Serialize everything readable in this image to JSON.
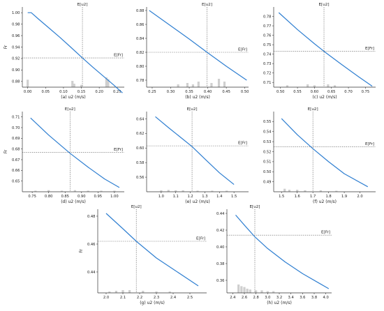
{
  "chart_data": [
    {
      "type": "line",
      "caption": "(a) u2 (m/s)",
      "ylabel": "Fr",
      "xlim": [
        -0.015,
        0.27
      ],
      "ylim": [
        0.87,
        1.01
      ],
      "xticks": [
        "0.00",
        "0.05",
        "0.10",
        "0.15",
        "0.20",
        "0.25"
      ],
      "yticks": [
        "0.88",
        "0.90",
        "0.92",
        "0.94",
        "0.96",
        "0.98",
        "1.00"
      ],
      "vline": {
        "x": 0.153,
        "label": "E[u2]"
      },
      "hline": {
        "y": 0.921,
        "label": "E[Fr]"
      },
      "series": [
        {
          "x": [
            0,
            0.01,
            0.03,
            0.06,
            0.09,
            0.12,
            0.153,
            0.18,
            0.21,
            0.24,
            0.265
          ],
          "y": [
            1.0,
            1.0,
            0.989,
            0.973,
            0.957,
            0.94,
            0.921,
            0.906,
            0.89,
            0.874,
            0.86
          ]
        }
      ],
      "histogram": {
        "x": [
          0.0,
          0.125,
          0.13,
          0.15,
          0.22,
          0.225
        ],
        "h": [
          0.013,
          0.011,
          0.006,
          0.004,
          0.017,
          0.014
        ]
      }
    },
    {
      "type": "line",
      "caption": "(b) u2 (m/s)",
      "ylabel": "",
      "xlim": [
        0.235,
        0.51
      ],
      "ylim": [
        0.77,
        0.885
      ],
      "xticks": [
        "0.25",
        "0.30",
        "0.35",
        "0.40",
        "0.45",
        "0.50"
      ],
      "yticks": [
        "0.78",
        "0.80",
        "0.82",
        "0.84",
        "0.86",
        "0.88"
      ],
      "vline": {
        "x": 0.398,
        "label": "E[u2]"
      },
      "hline": {
        "y": 0.82,
        "label": "E[Fr]"
      },
      "series": [
        {
          "x": [
            0.242,
            0.3,
            0.35,
            0.398,
            0.45,
            0.505
          ],
          "y": [
            0.88,
            0.858,
            0.839,
            0.82,
            0.8,
            0.78
          ]
        }
      ],
      "histogram": {
        "x": [
          0.32,
          0.345,
          0.36,
          0.375,
          0.41,
          0.43,
          0.445
        ],
        "h": [
          0.004,
          0.006,
          0.004,
          0.008,
          0.006,
          0.012,
          0.008
        ]
      }
    },
    {
      "type": "line",
      "caption": "(c) u2 (m/s)",
      "ylabel": "",
      "xlim": [
        0.48,
        0.78
      ],
      "ylim": [
        0.705,
        0.79
      ],
      "xticks": [
        "0.50",
        "0.55",
        "0.60",
        "0.65",
        "0.70",
        "0.75"
      ],
      "yticks": [
        "0.71",
        "0.72",
        "0.73",
        "0.74",
        "0.75",
        "0.76",
        "0.77",
        "0.78"
      ],
      "vline": {
        "x": 0.628,
        "label": "E[u2]"
      },
      "hline": {
        "y": 0.743,
        "label": "E[Fr]"
      },
      "series": [
        {
          "x": [
            0.495,
            0.55,
            0.6,
            0.628,
            0.68,
            0.73,
            0.77
          ],
          "y": [
            0.784,
            0.766,
            0.751,
            0.743,
            0.729,
            0.716,
            0.706
          ]
        }
      ],
      "histogram": {
        "x": [
          0.52,
          0.58,
          0.6,
          0.64,
          0.66
        ],
        "h": [
          0.002,
          0.003,
          0.002,
          0.003,
          0.002
        ]
      }
    },
    {
      "type": "line",
      "caption": "(d) u2 (m/s)",
      "ylabel": "Fr",
      "xlim": [
        0.72,
        1.03
      ],
      "ylim": [
        0.64,
        0.715
      ],
      "xticks": [
        "0.75",
        "0.80",
        "0.85",
        "0.90",
        "0.95",
        "1.00"
      ],
      "yticks": [
        "0.65",
        "0.66",
        "0.67",
        "0.68",
        "0.69",
        "0.70",
        "0.71"
      ],
      "vline": {
        "x": 0.865,
        "label": "E[u2]"
      },
      "hline": {
        "y": 0.677,
        "label": "E[Fr]"
      },
      "series": [
        {
          "x": [
            0.745,
            0.8,
            0.865,
            0.92,
            0.97,
            1.015
          ],
          "y": [
            0.709,
            0.693,
            0.676,
            0.663,
            0.652,
            0.644
          ]
        }
      ],
      "histogram": {
        "x": [
          0.76,
          0.8,
          0.84,
          0.88,
          0.92,
          0.96,
          1.0
        ],
        "h": [
          0.001,
          0.0015,
          0.001,
          0.0015,
          0.001,
          0.001,
          0.001
        ]
      }
    },
    {
      "type": "line",
      "caption": "(e) u2 (m/s)",
      "ylabel": "",
      "xlim": [
        0.9,
        1.6
      ],
      "ylim": [
        0.54,
        0.65
      ],
      "xticks": [
        "1.0",
        "1.1",
        "1.2",
        "1.3",
        "1.4",
        "1.5"
      ],
      "yticks": [
        "0.56",
        "0.58",
        "0.60",
        "0.62",
        "0.64"
      ],
      "vline": {
        "x": 1.212,
        "label": "E[u2]"
      },
      "hline": {
        "y": 0.603,
        "label": "E[Fr]"
      },
      "series": [
        {
          "x": [
            0.96,
            1.05,
            1.15,
            1.212,
            1.3,
            1.4,
            1.5
          ],
          "y": [
            0.643,
            0.628,
            0.612,
            0.602,
            0.585,
            0.566,
            0.55
          ]
        }
      ],
      "histogram": {
        "x": [
          1.0,
          1.05,
          1.1,
          1.15,
          1.25,
          1.35,
          1.45
        ],
        "h": [
          0.002,
          0.0025,
          0.002,
          0.002,
          0.0015,
          0.0015,
          0.0015
        ]
      }
    },
    {
      "type": "line",
      "caption": "(f) u2 (m/s)",
      "ylabel": "",
      "xlim": [
        1.45,
        2.1
      ],
      "ylim": [
        0.48,
        0.56
      ],
      "xticks": [
        "1.5",
        "1.6",
        "1.7",
        "1.8",
        "1.9",
        "2.0"
      ],
      "yticks": [
        "0.49",
        "0.50",
        "0.51",
        "0.52",
        "0.53",
        "0.54",
        "0.55"
      ],
      "vline": {
        "x": 1.7,
        "label": "E[u2]"
      },
      "hline": {
        "y": 0.525,
        "label": "E[Fr]"
      },
      "series": [
        {
          "x": [
            1.5,
            1.6,
            1.7,
            1.8,
            1.9,
            2.05
          ],
          "y": [
            0.553,
            0.537,
            0.523,
            0.51,
            0.498,
            0.485
          ]
        }
      ],
      "histogram": {
        "x": [
          1.52,
          1.55,
          1.6,
          1.65,
          1.75,
          1.85
        ],
        "h": [
          0.003,
          0.002,
          0.002,
          0.0015,
          0.0015,
          0.001
        ]
      }
    },
    {
      "type": "line",
      "caption": "(g) u2 (m/s)",
      "ylabel": "Fr",
      "xlim": [
        1.95,
        2.6
      ],
      "ylim": [
        0.425,
        0.485
      ],
      "xticks": [
        "2.0",
        "2.1",
        "2.2",
        "2.3",
        "2.4",
        "2.5"
      ],
      "yticks": [
        "0.44",
        "0.46",
        "0.48"
      ],
      "vline": {
        "x": 2.18,
        "label": "E[u2]"
      },
      "hline": {
        "y": 0.462,
        "label": "E[Fr]"
      },
      "series": [
        {
          "x": [
            2.0,
            2.1,
            2.18,
            2.3,
            2.4,
            2.55
          ],
          "y": [
            0.482,
            0.471,
            0.462,
            0.45,
            0.442,
            0.43
          ]
        }
      ],
      "histogram": {
        "x": [
          2.02,
          2.06,
          2.1,
          2.14,
          2.22,
          2.3,
          2.38
        ],
        "h": [
          0.001,
          0.0015,
          0.002,
          0.002,
          0.0015,
          0.001,
          0.001
        ]
      }
    },
    {
      "type": "line",
      "caption": "(h) u2 (m/s)",
      "ylabel": "",
      "xlim": [
        2.3,
        4.1
      ],
      "ylim": [
        0.345,
        0.445
      ],
      "xticks": [
        "2.4",
        "2.6",
        "2.8",
        "3.0",
        "3.2",
        "3.4",
        "3.6",
        "3.8",
        "4.0"
      ],
      "yticks": [
        "0.36",
        "0.38",
        "0.40",
        "0.42",
        "0.44"
      ],
      "vline": {
        "x": 2.78,
        "label": "E[u2]"
      },
      "hline": {
        "y": 0.414,
        "label": "E[Fr]"
      },
      "series": [
        {
          "x": [
            2.45,
            2.6,
            2.78,
            3.0,
            3.3,
            3.6,
            3.9,
            4.05
          ],
          "y": [
            0.438,
            0.426,
            0.412,
            0.398,
            0.382,
            0.368,
            0.356,
            0.35
          ]
        }
      ],
      "histogram": {
        "x": [
          2.5,
          2.55,
          2.6,
          2.65,
          2.7,
          2.8,
          2.9,
          3.0,
          3.1
        ],
        "h": [
          0.01,
          0.008,
          0.007,
          0.005,
          0.004,
          0.003,
          0.003,
          0.002,
          0.002
        ]
      }
    }
  ],
  "colors": {
    "line": "#2f7fd1",
    "bars": "#cfcfcf",
    "ref": "#555555",
    "axis": "#333333"
  }
}
